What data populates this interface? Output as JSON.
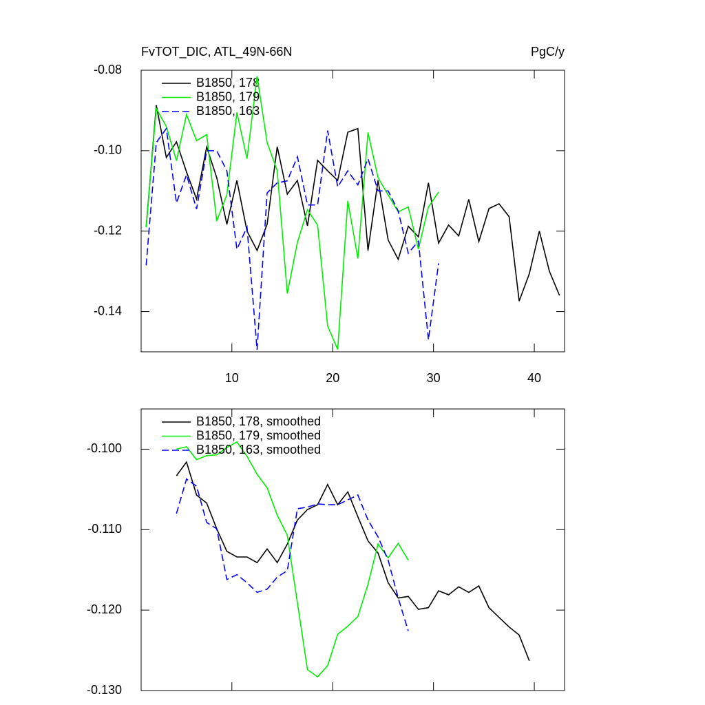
{
  "chart_data": [
    {
      "type": "line",
      "title": "FvTOT_DIC, ATL_49N-66N",
      "units": "PgC/y",
      "xlim": [
        1,
        43
      ],
      "xticks": [
        10,
        20,
        30,
        40
      ],
      "ylim": [
        -0.15,
        -0.08
      ],
      "yticks": [
        {
          "value": -0.08,
          "label": "-0.08"
        },
        {
          "value": -0.1,
          "label": "-0.10"
        },
        {
          "value": -0.12,
          "label": "-0.12"
        },
        {
          "value": -0.14,
          "label": "-0.14"
        }
      ],
      "legend": "upper left",
      "series": [
        {
          "name": "B1850, 178",
          "color": "#000000",
          "line_style": "solid",
          "x": [
            1.5,
            2.5,
            3.5,
            4.5,
            5.5,
            6.5,
            7.5,
            8.5,
            9.5,
            10.5,
            11.5,
            12.5,
            13.5,
            14.5,
            15.5,
            16.5,
            17.5,
            18.5,
            19.5,
            20.5,
            21.5,
            22.5,
            23.5,
            24.5,
            25.5,
            26.5,
            27.5,
            28.5,
            29.5,
            30.5,
            31.5,
            32.5,
            33.5,
            34.5,
            35.5,
            36.5,
            37.5,
            38.5,
            39.5,
            40.5,
            41.5,
            42.5
          ],
          "values": [
            -0.119,
            -0.0887,
            -0.1017,
            -0.0978,
            -0.1053,
            -0.112,
            -0.0991,
            -0.1067,
            -0.1183,
            -0.1074,
            -0.12,
            -0.1248,
            -0.1183,
            -0.099,
            -0.1108,
            -0.1074,
            -0.1187,
            -0.1024,
            -0.105,
            -0.1074,
            -0.0954,
            -0.0945,
            -0.1248,
            -0.1074,
            -0.1222,
            -0.127,
            -0.1188,
            -0.1214,
            -0.108,
            -0.123,
            -0.1185,
            -0.1212,
            -0.1121,
            -0.1226,
            -0.1144,
            -0.1132,
            -0.1164,
            -0.1374,
            -0.1306,
            -0.12,
            -0.13,
            -0.136
          ]
        },
        {
          "name": "B1850, 179",
          "color": "#00ee00",
          "line_style": "solid",
          "x": [
            1.5,
            2.5,
            3.5,
            4.5,
            5.5,
            6.5,
            7.5,
            8.5,
            9.5,
            10.5,
            11.5,
            12.5,
            13.5,
            14.5,
            15.5,
            16.5,
            17.5,
            18.5,
            19.5,
            20.5,
            21.5,
            22.5,
            23.5,
            24.5,
            25.5,
            26.5,
            27.5,
            28.5,
            29.5,
            30.5
          ],
          "values": [
            -0.119,
            -0.0895,
            -0.094,
            -0.1025,
            -0.091,
            -0.0975,
            -0.096,
            -0.1175,
            -0.111,
            -0.0905,
            -0.102,
            -0.0815,
            -0.098,
            -0.105,
            -0.1355,
            -0.1228,
            -0.1147,
            -0.1185,
            -0.1436,
            -0.1494,
            -0.1125,
            -0.1268,
            -0.0955,
            -0.1067,
            -0.111,
            -0.1152,
            -0.114,
            -0.1245,
            -0.114,
            -0.1103
          ]
        },
        {
          "name": "B1850, 163",
          "color": "#0000ff",
          "line_style": "dashed",
          "x": [
            1.5,
            2.5,
            3.5,
            4.5,
            5.5,
            6.5,
            7.5,
            8.5,
            9.5,
            10.5,
            11.5,
            12.5,
            13.5,
            14.5,
            15.5,
            16.5,
            17.5,
            18.5,
            19.5,
            20.5,
            21.5,
            22.5,
            23.5,
            24.5,
            25.5,
            26.5,
            27.5,
            28.5,
            29.5,
            30.5
          ],
          "values": [
            -0.1285,
            -0.098,
            -0.0945,
            -0.113,
            -0.106,
            -0.1145,
            -0.1,
            -0.1,
            -0.105,
            -0.1245,
            -0.119,
            -0.1495,
            -0.1105,
            -0.108,
            -0.1075,
            -0.1015,
            -0.1135,
            -0.1135,
            -0.095,
            -0.109,
            -0.105,
            -0.1085,
            -0.102,
            -0.11,
            -0.11,
            -0.115,
            -0.1255,
            -0.1225,
            -0.147,
            -0.128
          ]
        }
      ]
    },
    {
      "type": "line",
      "xlim": [
        1,
        43
      ],
      "xticks": [
        10,
        20,
        30,
        40
      ],
      "xtick_labels": false,
      "ylim": [
        -0.13,
        -0.095
      ],
      "yticks": [
        {
          "value": -0.1,
          "label": "-0.100"
        },
        {
          "value": -0.11,
          "label": "-0.110"
        },
        {
          "value": -0.12,
          "label": "-0.120"
        },
        {
          "value": -0.13,
          "label": "-0.130"
        }
      ],
      "legend": "upper left",
      "series": [
        {
          "name": "B1850, 178, smoothed",
          "color": "#000000",
          "line_style": "solid",
          "x": [
            4.5,
            5.5,
            6.5,
            7.5,
            8.5,
            9.5,
            10.5,
            11.5,
            12.5,
            13.5,
            14.5,
            15.5,
            16.5,
            17.5,
            18.5,
            19.5,
            20.5,
            21.5,
            22.5,
            23.5,
            24.5,
            25.5,
            26.5,
            27.5,
            28.5,
            29.5,
            30.5,
            31.5,
            32.5,
            33.5,
            34.5,
            35.5,
            36.5,
            37.5,
            38.5,
            39.5
          ],
          "values": [
            -0.1033,
            -0.1016,
            -0.1057,
            -0.1067,
            -0.1099,
            -0.1127,
            -0.1134,
            -0.1134,
            -0.1141,
            -0.1124,
            -0.1141,
            -0.1118,
            -0.1088,
            -0.1075,
            -0.1069,
            -0.1044,
            -0.1069,
            -0.1053,
            -0.1084,
            -0.1114,
            -0.1129,
            -0.1166,
            -0.1185,
            -0.1183,
            -0.1199,
            -0.1197,
            -0.1176,
            -0.1181,
            -0.1171,
            -0.1178,
            -0.117,
            -0.1197,
            -0.1209,
            -0.1221,
            -0.1231,
            -0.1263
          ]
        },
        {
          "name": "B1850, 179, smoothed",
          "color": "#00ee00",
          "line_style": "solid",
          "x": [
            4.5,
            5.5,
            6.5,
            7.5,
            8.5,
            9.5,
            10.5,
            11.5,
            12.5,
            13.5,
            14.5,
            15.5,
            16.5,
            17.5,
            18.5,
            19.5,
            20.5,
            21.5,
            22.5,
            23.5,
            24.5,
            25.5,
            26.5,
            27.5
          ],
          "values": [
            -0.1,
            -0.0997,
            -0.1013,
            -0.1008,
            -0.1007,
            -0.0998,
            -0.0991,
            -0.1009,
            -0.1031,
            -0.1048,
            -0.1082,
            -0.1107,
            -0.1191,
            -0.1274,
            -0.1283,
            -0.1269,
            -0.123,
            -0.122,
            -0.1208,
            -0.1168,
            -0.1118,
            -0.1135,
            -0.1117,
            -0.1138
          ]
        },
        {
          "name": "B1850, 163, smoothed",
          "color": "#0000ff",
          "line_style": "dashed",
          "x": [
            4.5,
            5.5,
            6.5,
            7.5,
            8.5,
            9.5,
            10.5,
            11.5,
            12.5,
            13.5,
            14.5,
            15.5,
            16.5,
            17.5,
            18.5,
            19.5,
            20.5,
            21.5,
            22.5,
            23.5,
            24.5,
            25.5,
            26.5,
            27.5
          ],
          "values": [
            -0.108,
            -0.1037,
            -0.1046,
            -0.1091,
            -0.1099,
            -0.1162,
            -0.1156,
            -0.1166,
            -0.1178,
            -0.1174,
            -0.1159,
            -0.1151,
            -0.1074,
            -0.1072,
            -0.1068,
            -0.1069,
            -0.1069,
            -0.1063,
            -0.1057,
            -0.1088,
            -0.1109,
            -0.1138,
            -0.1185,
            -0.1226
          ]
        }
      ]
    }
  ]
}
